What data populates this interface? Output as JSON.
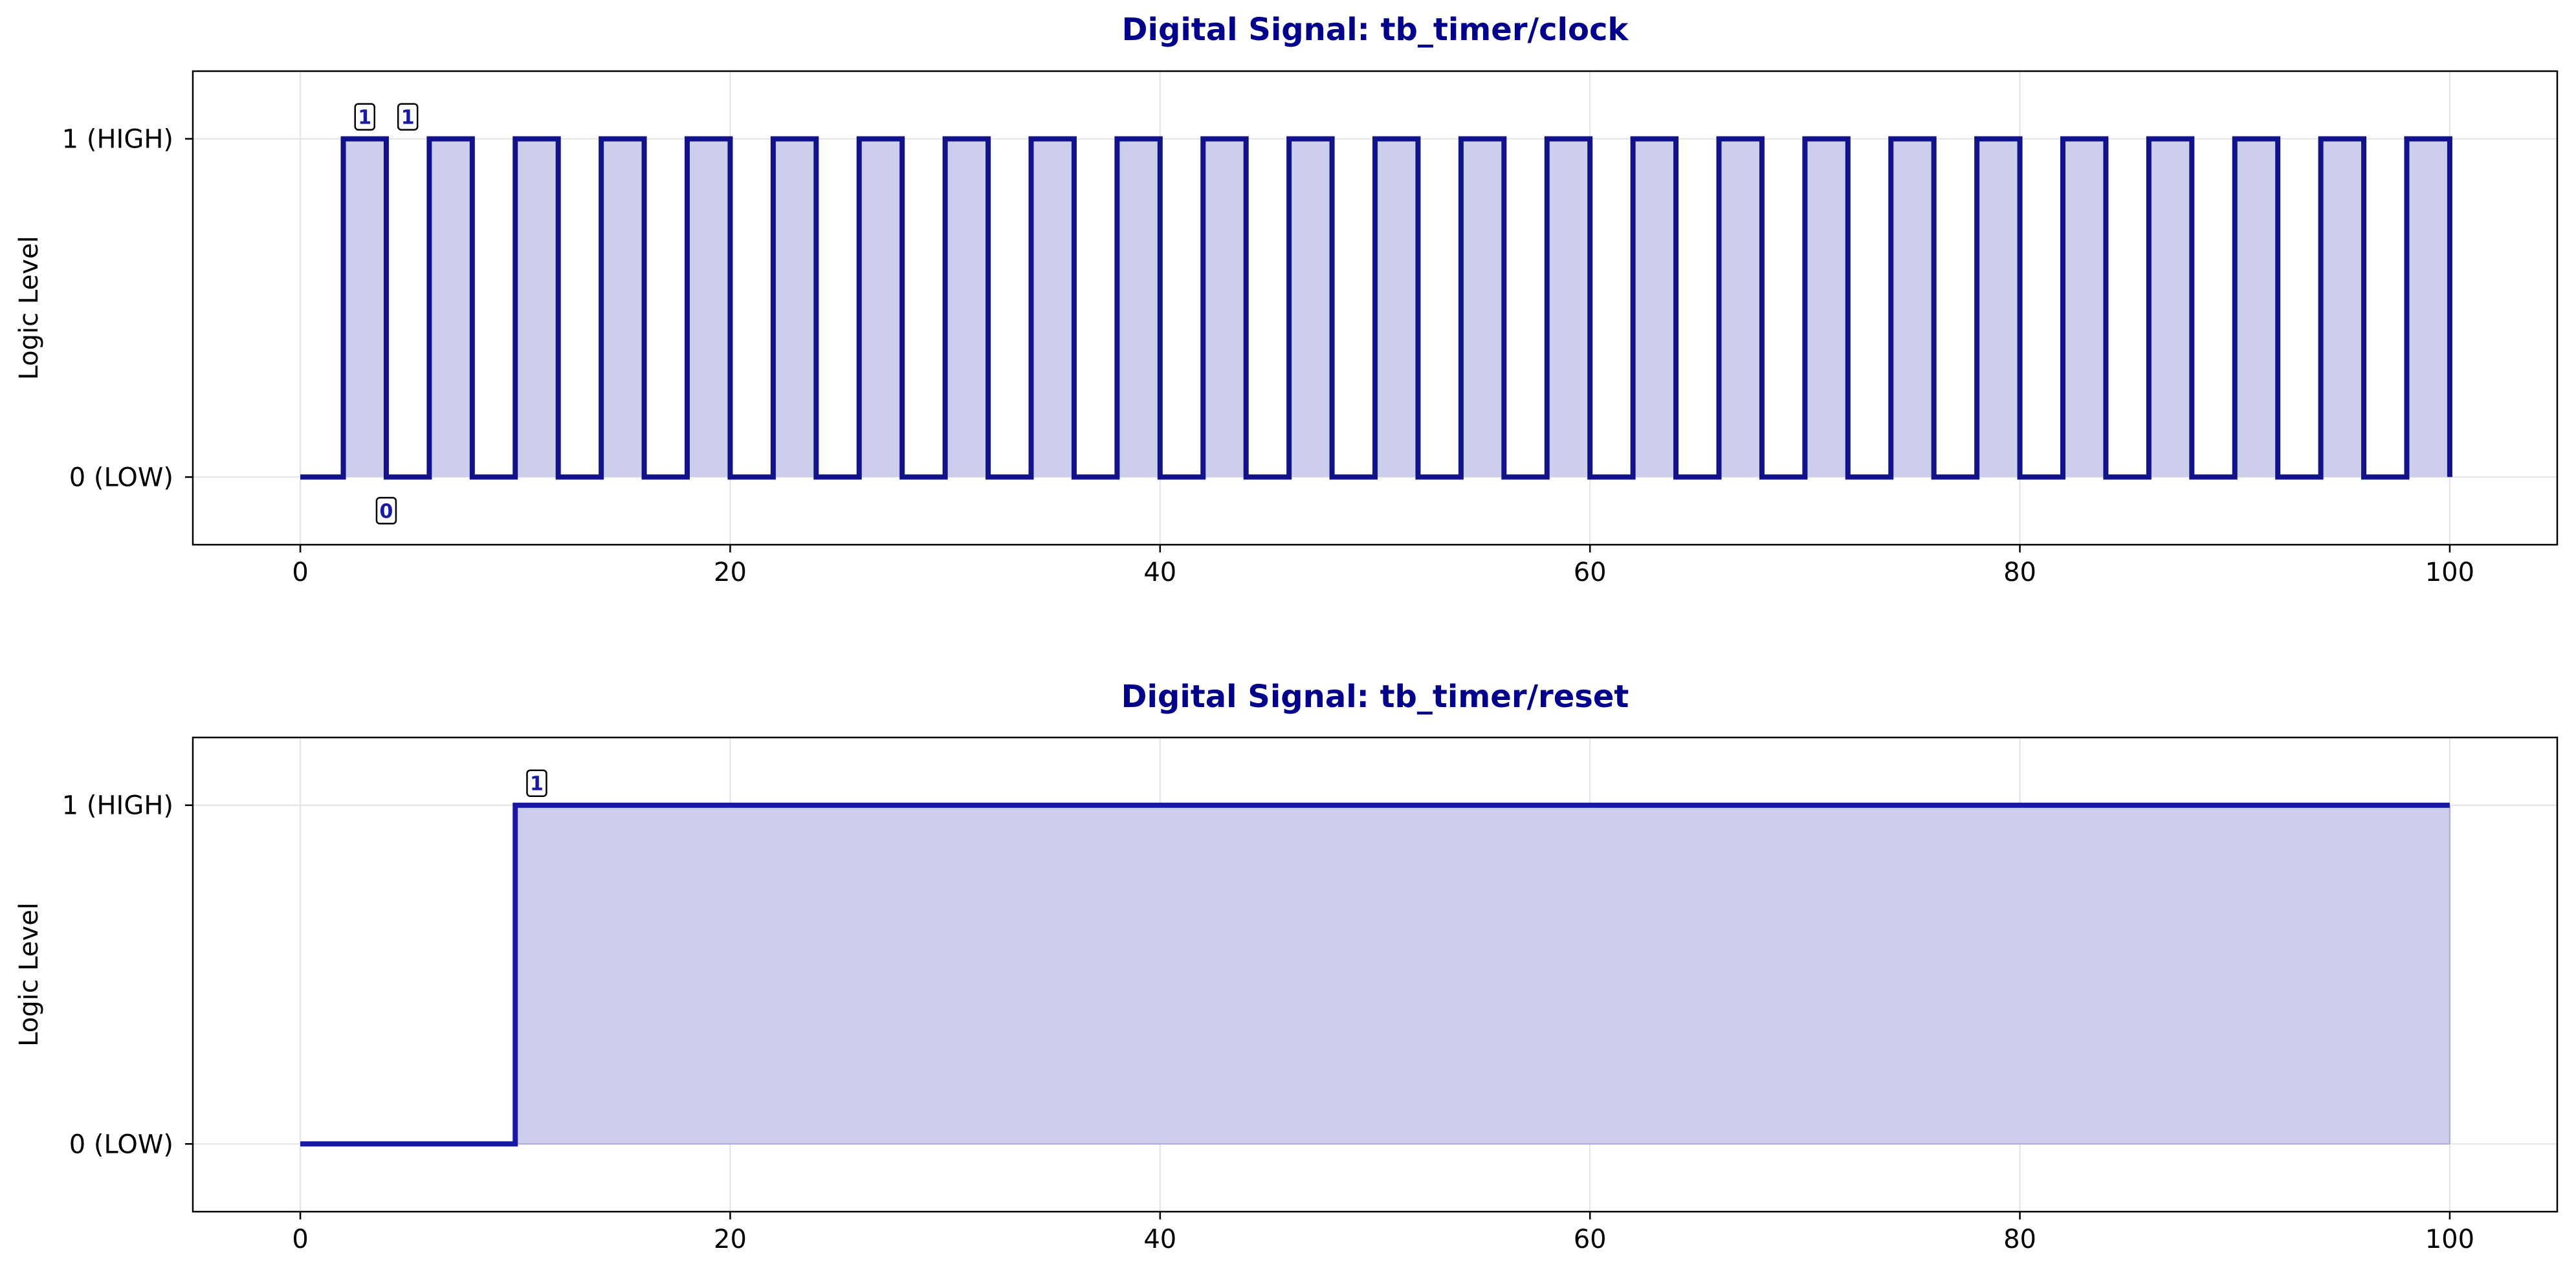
{
  "colors": {
    "title": "#00008B",
    "clock_line": "#12128A",
    "reset_line": "#1818A6",
    "fill": "#CCCEEB",
    "grid": "#E3E3E3",
    "axis": "#000000",
    "annotation_text": "#1A1AA0",
    "annotation_box": "#FAFAFF",
    "annotation_border": "#000000"
  },
  "chart_data": [
    {
      "type": "line",
      "style": "step",
      "title": "Digital Signal: tb_timer/clock",
      "ylabel": "Logic Level",
      "xlim": [
        -5,
        105
      ],
      "ylim": [
        -0.2,
        1.2
      ],
      "grid": true,
      "xticks": [
        0,
        20,
        40,
        60,
        80,
        100
      ],
      "xtick_labels": [
        "0",
        "20",
        "40",
        "60",
        "80",
        "100"
      ],
      "yticks": [
        0,
        1
      ],
      "ytick_labels": [
        "0 (LOW)",
        "1 (HIGH)"
      ],
      "filled": true,
      "series": [
        {
          "x": [
            0,
            2,
            4,
            6,
            8,
            10,
            12,
            14,
            16,
            18,
            20,
            22,
            24,
            26,
            28,
            30,
            32,
            34,
            36,
            38,
            40,
            42,
            44,
            46,
            48,
            50,
            52,
            54,
            56,
            58,
            60,
            62,
            64,
            66,
            68,
            70,
            72,
            74,
            76,
            78,
            80,
            82,
            84,
            86,
            88,
            90,
            92,
            94,
            96,
            98,
            100
          ],
          "values": [
            0,
            1,
            0,
            1,
            0,
            1,
            0,
            1,
            0,
            1,
            0,
            1,
            0,
            1,
            0,
            1,
            0,
            1,
            0,
            1,
            0,
            1,
            0,
            1,
            0,
            1,
            0,
            1,
            0,
            1,
            0,
            1,
            0,
            1,
            0,
            1,
            0,
            1,
            0,
            1,
            0,
            1,
            0,
            1,
            0,
            1,
            0,
            1,
            0,
            1,
            0
          ]
        }
      ],
      "annotations": [
        {
          "text": "1",
          "x": 3,
          "y": 1
        },
        {
          "text": "0",
          "x": 4,
          "y": 0
        },
        {
          "text": "1",
          "x": 5,
          "y": 1
        }
      ]
    },
    {
      "type": "line",
      "style": "step",
      "title": "Digital Signal: tb_timer/reset",
      "ylabel": "Logic Level",
      "xlim": [
        -5,
        105
      ],
      "ylim": [
        -0.2,
        1.2
      ],
      "grid": true,
      "xticks": [
        0,
        20,
        40,
        60,
        80,
        100
      ],
      "xtick_labels": [
        "0",
        "20",
        "40",
        "60",
        "80",
        "100"
      ],
      "yticks": [
        0,
        1
      ],
      "ytick_labels": [
        "0 (LOW)",
        "1 (HIGH)"
      ],
      "filled": true,
      "series": [
        {
          "x": [
            0,
            10,
            100
          ],
          "values": [
            0,
            1,
            1
          ]
        }
      ],
      "annotations": [
        {
          "text": "1",
          "x": 11,
          "y": 1
        }
      ]
    }
  ]
}
